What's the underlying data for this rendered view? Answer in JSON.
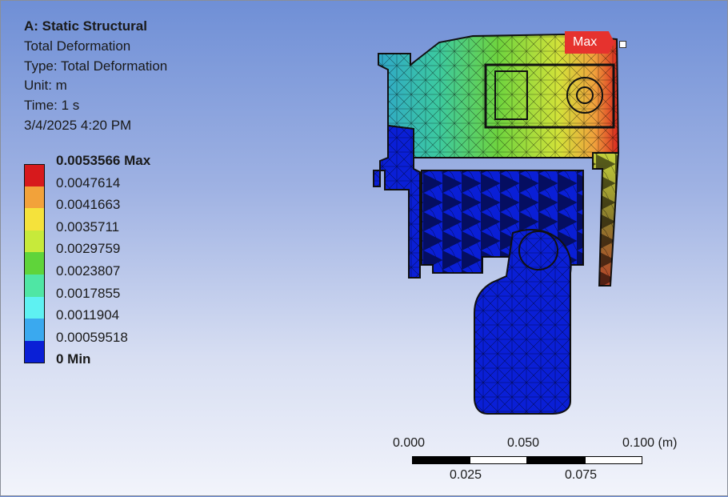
{
  "info": {
    "title": "A: Static Structural",
    "result": "Total Deformation",
    "type": "Type: Total Deformation",
    "unit": "Unit: m",
    "time": "Time: 1 s",
    "date": "3/4/2025 4:20 PM"
  },
  "legend": [
    {
      "label": "0.0053566 Max",
      "bold": true,
      "color": "#d7191c"
    },
    {
      "label": "0.0047614",
      "bold": false,
      "color": "#f2a23a"
    },
    {
      "label": "0.0041663",
      "bold": false,
      "color": "#f5e23b"
    },
    {
      "label": "0.0035711",
      "bold": false,
      "color": "#c7ea3a"
    },
    {
      "label": "0.0029759",
      "bold": false,
      "color": "#5fd43a"
    },
    {
      "label": "0.0023807",
      "bold": false,
      "color": "#4fe6a4"
    },
    {
      "label": "0.0017855",
      "bold": false,
      "color": "#5ef1f2"
    },
    {
      "label": "0.0011904",
      "bold": false,
      "color": "#3aa9ef"
    },
    {
      "label": "0.00059518",
      "bold": false,
      "color": "#0a1fd6"
    },
    {
      "label": "0 Min",
      "bold": true,
      "color": "#0a1fd6"
    }
  ],
  "max_label": "Max",
  "scale": {
    "top_labels": [
      "0.000",
      "0.050",
      "0.100 (m)"
    ],
    "bottom_labels": [
      "0.025",
      "0.075"
    ]
  }
}
